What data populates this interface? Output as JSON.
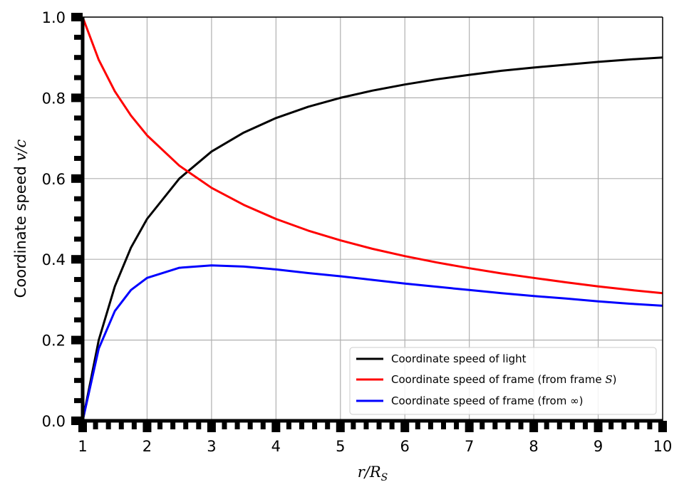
{
  "chart_data": {
    "type": "line",
    "xlabel": "r/R_S",
    "xlabel_parts": {
      "var": "r/R",
      "sub": "S"
    },
    "ylabel": "Coordinate speed v/c",
    "ylabel_parts": {
      "text": "Coordinate speed ",
      "math": "v/c"
    },
    "xlim": [
      1,
      10
    ],
    "ylim": [
      0,
      1
    ],
    "x_ticks": [
      "1",
      "2",
      "3",
      "4",
      "5",
      "6",
      "7",
      "8",
      "9",
      "10"
    ],
    "y_ticks": [
      "0.0",
      "0.2",
      "0.4",
      "0.6",
      "0.8",
      "1.0"
    ],
    "grid": true,
    "legend_position": "lower-right",
    "x": [
      1.0,
      1.25,
      1.5,
      1.75,
      2.0,
      2.5,
      3.0,
      3.5,
      4.0,
      4.5,
      5.0,
      5.5,
      6.0,
      6.5,
      7.0,
      7.5,
      8.0,
      8.5,
      9.0,
      9.5,
      10.0
    ],
    "series": [
      {
        "name": "Coordinate speed of light",
        "legend_parts": {
          "text": "Coordinate speed of light",
          "math": ""
        },
        "color": "#000000",
        "values": [
          0.0,
          0.2,
          0.333,
          0.429,
          0.5,
          0.6,
          0.667,
          0.714,
          0.75,
          0.778,
          0.8,
          0.818,
          0.833,
          0.846,
          0.857,
          0.867,
          0.875,
          0.882,
          0.889,
          0.895,
          0.9
        ]
      },
      {
        "name": "Coordinate speed of frame (from frame S)",
        "legend_parts": {
          "text": "Coordinate speed of frame (from frame ",
          "math": "S",
          "after": ")"
        },
        "color": "#ff0000",
        "values": [
          1.0,
          0.894,
          0.816,
          0.756,
          0.707,
          0.632,
          0.577,
          0.535,
          0.5,
          0.471,
          0.447,
          0.426,
          0.408,
          0.392,
          0.378,
          0.365,
          0.354,
          0.343,
          0.333,
          0.324,
          0.316
        ]
      },
      {
        "name": "Coordinate speed of frame (from ∞)",
        "legend_parts": {
          "text": "Coordinate speed of frame (from ",
          "math": "∞",
          "after": ")"
        },
        "color": "#0000ff",
        "values": [
          0.0,
          0.179,
          0.272,
          0.324,
          0.354,
          0.379,
          0.385,
          0.382,
          0.375,
          0.366,
          0.358,
          0.349,
          0.34,
          0.332,
          0.324,
          0.316,
          0.309,
          0.303,
          0.296,
          0.29,
          0.285
        ]
      }
    ]
  }
}
